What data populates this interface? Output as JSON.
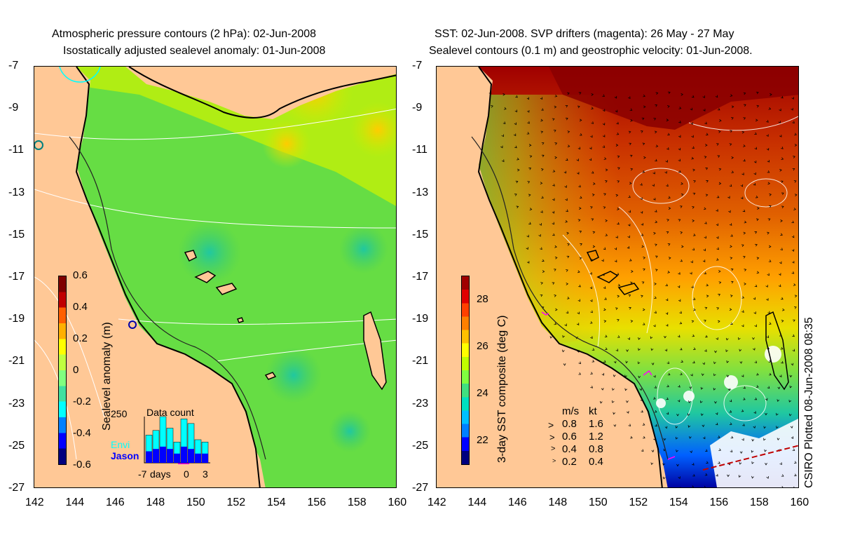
{
  "left_panel": {
    "title_line1": "Atmospheric pressure contours (2 hPa): 02-Jun-2008",
    "title_line2": "Isostatically adjusted sealevel anomaly: 01-Jun-2008",
    "colorbar": {
      "label": "Sealevel anomaly (m)",
      "ticks": [
        "0.6",
        "0.4",
        "0.2",
        "0",
        "-0.2",
        "-0.4",
        "-0.6"
      ],
      "colors": [
        "#00007f",
        "#0000ff",
        "#0080ff",
        "#00ffff",
        "#40e0a0",
        "#80ff80",
        "#c0ff40",
        "#ffff00",
        "#ffb000",
        "#ff6000",
        "#c00000",
        "#7f0000"
      ]
    },
    "inset": {
      "title": "Data count",
      "y_max_label": "250",
      "series_envi": "Envi",
      "series_jason": "Jason",
      "x_labels": [
        "-7",
        "days",
        "0",
        "3"
      ],
      "envi_color": "#00ffff",
      "jason_color": "#0000ff",
      "bars": [
        {
          "envi": 0.6,
          "jason": 0.25
        },
        {
          "envi": 0.7,
          "jason": 0.3
        },
        {
          "envi": 1.0,
          "jason": 0.35
        },
        {
          "envi": 0.75,
          "jason": 0.3
        },
        {
          "envi": 0.45,
          "jason": 0.2
        },
        {
          "envi": 0.95,
          "jason": 0.35
        },
        {
          "envi": 0.85,
          "jason": 0.3
        },
        {
          "envi": 0.5,
          "jason": 0.2
        },
        {
          "envi": 0.45,
          "jason": 0.2
        }
      ]
    }
  },
  "right_panel": {
    "title_line1": "SST: 02-Jun-2008. SVP drifters (magenta): 26 May - 27 May",
    "title_line2": "Sealevel contours (0.1 m) and geostrophic velocity: 01-Jun-2008.",
    "colorbar": {
      "label": "3-day SST composite (deg C)",
      "ticks": [
        "28",
        "26",
        "24",
        "22"
      ],
      "colors": [
        "#00007f",
        "#0000ff",
        "#0080ff",
        "#00c0ff",
        "#00e0c0",
        "#40e080",
        "#80ff40",
        "#c0ff00",
        "#ffff00",
        "#ffc000",
        "#ff8000",
        "#ff4000",
        "#e00000",
        "#a00000"
      ]
    },
    "velocity_legend": {
      "header_ms": "m/s",
      "header_kt": "kt",
      "rows": [
        {
          "ms": "0.8",
          "kt": "1.6"
        },
        {
          "ms": "0.6",
          "kt": "1.2"
        },
        {
          "ms": "0.4",
          "kt": "0.8"
        },
        {
          "ms": "0.2",
          "kt": "0.4"
        }
      ]
    },
    "credit": "CSIRO Plotted 08-Jun-2008 08:35"
  },
  "axes": {
    "lat_ticks": [
      "-7",
      "-9",
      "-11",
      "-13",
      "-15",
      "-17",
      "-19",
      "-21",
      "-23",
      "-25",
      "-27"
    ],
    "lon_ticks": [
      "142",
      "144",
      "146",
      "148",
      "150",
      "152",
      "154",
      "156",
      "158",
      "160"
    ]
  },
  "colors": {
    "land": "#ffc896",
    "ocean_left": "#66dd44",
    "coastline": "#000000",
    "contour": "#ffffff",
    "drifter": "#ff00ff"
  }
}
